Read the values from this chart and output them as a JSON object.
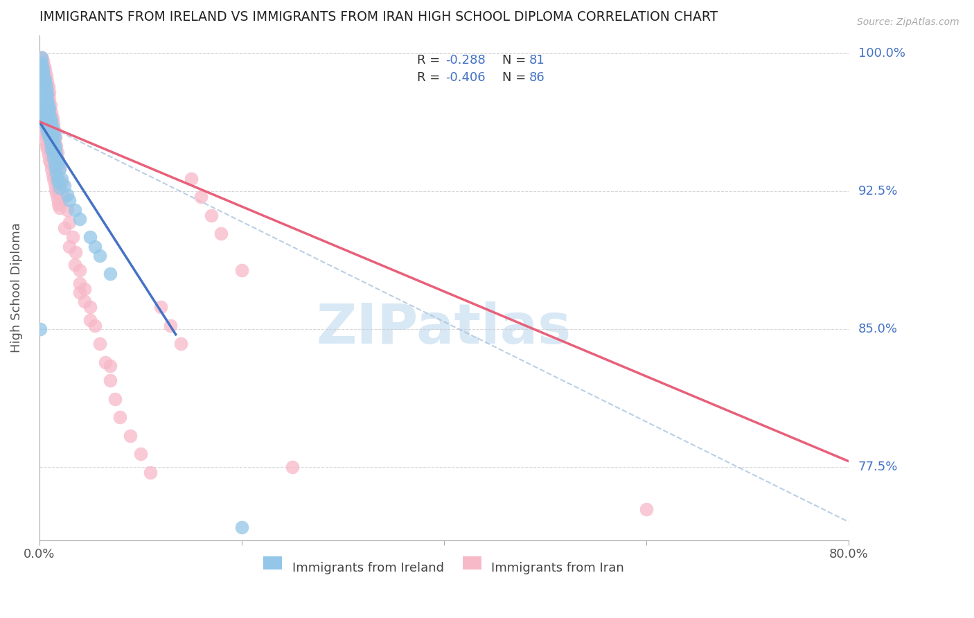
{
  "title": "IMMIGRANTS FROM IRELAND VS IMMIGRANTS FROM IRAN HIGH SCHOOL DIPLOMA CORRELATION CHART",
  "source": "Source: ZipAtlas.com",
  "ylabel": "High School Diploma",
  "xlim": [
    0.0,
    0.8
  ],
  "ylim": [
    0.735,
    1.01
  ],
  "yticks": [
    1.0,
    0.925,
    0.85,
    0.775
  ],
  "ytick_labels": [
    "100.0%",
    "92.5%",
    "85.0%",
    "77.5%"
  ],
  "xticks": [
    0.0,
    0.2,
    0.4,
    0.6,
    0.8
  ],
  "xtick_labels": [
    "0.0%",
    "",
    "",
    "",
    "80.0%"
  ],
  "ireland_color": "#93c6e8",
  "iran_color": "#f7b8c8",
  "ireland_line_color": "#4472c4",
  "iran_line_color": "#e8607a",
  "legend_label_ireland": "Immigrants from Ireland",
  "legend_label_iran": "Immigrants from Iran",
  "background_color": "#ffffff",
  "grid_color": "#cccccc",
  "title_color": "#222222",
  "right_tick_color": "#4472c4",
  "watermark_color": "#d8e8f5",
  "ireland_R_text": "R = ",
  "ireland_R_val": "-0.288",
  "ireland_N_text": "  N = ",
  "ireland_N_val": "81",
  "iran_R_text": "R = ",
  "iran_R_val": "-0.406",
  "iran_N_text": "  N = ",
  "iran_N_val": "86",
  "ireland_line_x": [
    0.0,
    0.135
  ],
  "ireland_line_y": [
    0.963,
    0.847
  ],
  "iran_line_x": [
    0.0,
    0.8
  ],
  "iran_line_y": [
    0.963,
    0.778
  ],
  "dash_line_x": [
    0.0,
    0.8
  ],
  "dash_line_y": [
    0.963,
    0.745
  ],
  "ireland_scatter_x": [
    0.002,
    0.002,
    0.003,
    0.003,
    0.003,
    0.004,
    0.004,
    0.004,
    0.005,
    0.005,
    0.005,
    0.005,
    0.006,
    0.006,
    0.006,
    0.007,
    0.007,
    0.007,
    0.007,
    0.008,
    0.008,
    0.008,
    0.009,
    0.009,
    0.009,
    0.01,
    0.01,
    0.01,
    0.011,
    0.011,
    0.012,
    0.012,
    0.013,
    0.013,
    0.014,
    0.014,
    0.015,
    0.015,
    0.016,
    0.017,
    0.018,
    0.019,
    0.02,
    0.022,
    0.025,
    0.028,
    0.03,
    0.035,
    0.04,
    0.05,
    0.055,
    0.06,
    0.07,
    0.003,
    0.004,
    0.005,
    0.006,
    0.007,
    0.008,
    0.009,
    0.002,
    0.003,
    0.004,
    0.005,
    0.006,
    0.007,
    0.008,
    0.009,
    0.01,
    0.011,
    0.012,
    0.013,
    0.014,
    0.015,
    0.016,
    0.017,
    0.018,
    0.019,
    0.02,
    0.2,
    0.001
  ],
  "ireland_scatter_y": [
    0.995,
    0.998,
    0.99,
    0.993,
    0.986,
    0.988,
    0.991,
    0.982,
    0.987,
    0.984,
    0.98,
    0.978,
    0.985,
    0.976,
    0.973,
    0.982,
    0.979,
    0.975,
    0.971,
    0.978,
    0.974,
    0.97,
    0.972,
    0.968,
    0.965,
    0.97,
    0.966,
    0.962,
    0.965,
    0.96,
    0.963,
    0.958,
    0.96,
    0.955,
    0.958,
    0.952,
    0.955,
    0.95,
    0.948,
    0.945,
    0.942,
    0.94,
    0.937,
    0.932,
    0.928,
    0.923,
    0.92,
    0.915,
    0.91,
    0.9,
    0.895,
    0.89,
    0.88,
    0.968,
    0.966,
    0.964,
    0.962,
    0.96,
    0.958,
    0.956,
    0.975,
    0.972,
    0.97,
    0.967,
    0.964,
    0.962,
    0.959,
    0.956,
    0.954,
    0.951,
    0.948,
    0.946,
    0.943,
    0.94,
    0.938,
    0.935,
    0.932,
    0.93,
    0.927,
    0.742,
    0.85
  ],
  "iran_scatter_x": [
    0.002,
    0.003,
    0.003,
    0.004,
    0.004,
    0.005,
    0.005,
    0.006,
    0.006,
    0.007,
    0.007,
    0.008,
    0.008,
    0.009,
    0.009,
    0.01,
    0.01,
    0.011,
    0.012,
    0.013,
    0.014,
    0.015,
    0.016,
    0.017,
    0.018,
    0.019,
    0.02,
    0.022,
    0.025,
    0.028,
    0.03,
    0.033,
    0.036,
    0.04,
    0.045,
    0.05,
    0.055,
    0.06,
    0.065,
    0.07,
    0.075,
    0.08,
    0.09,
    0.1,
    0.11,
    0.12,
    0.13,
    0.14,
    0.15,
    0.16,
    0.17,
    0.18,
    0.2,
    0.003,
    0.004,
    0.005,
    0.006,
    0.007,
    0.008,
    0.009,
    0.01,
    0.011,
    0.012,
    0.013,
    0.014,
    0.015,
    0.016,
    0.017,
    0.018,
    0.019,
    0.02,
    0.025,
    0.03,
    0.035,
    0.04,
    0.045,
    0.05,
    0.001,
    0.001,
    0.002,
    0.002,
    0.003,
    0.6,
    0.25,
    0.04,
    0.07
  ],
  "iran_scatter_y": [
    0.998,
    0.995,
    0.992,
    0.996,
    0.99,
    0.993,
    0.988,
    0.991,
    0.985,
    0.988,
    0.983,
    0.985,
    0.98,
    0.982,
    0.977,
    0.979,
    0.975,
    0.972,
    0.968,
    0.965,
    0.962,
    0.958,
    0.954,
    0.95,
    0.946,
    0.942,
    0.938,
    0.93,
    0.922,
    0.915,
    0.908,
    0.9,
    0.892,
    0.882,
    0.872,
    0.862,
    0.852,
    0.842,
    0.832,
    0.822,
    0.812,
    0.802,
    0.792,
    0.782,
    0.772,
    0.862,
    0.852,
    0.842,
    0.932,
    0.922,
    0.912,
    0.902,
    0.882,
    0.96,
    0.958,
    0.956,
    0.953,
    0.95,
    0.948,
    0.945,
    0.942,
    0.94,
    0.937,
    0.934,
    0.932,
    0.929,
    0.926,
    0.924,
    0.921,
    0.918,
    0.916,
    0.905,
    0.895,
    0.885,
    0.875,
    0.865,
    0.855,
    0.972,
    0.968,
    0.965,
    0.962,
    0.97,
    0.752,
    0.775,
    0.87,
    0.83
  ]
}
